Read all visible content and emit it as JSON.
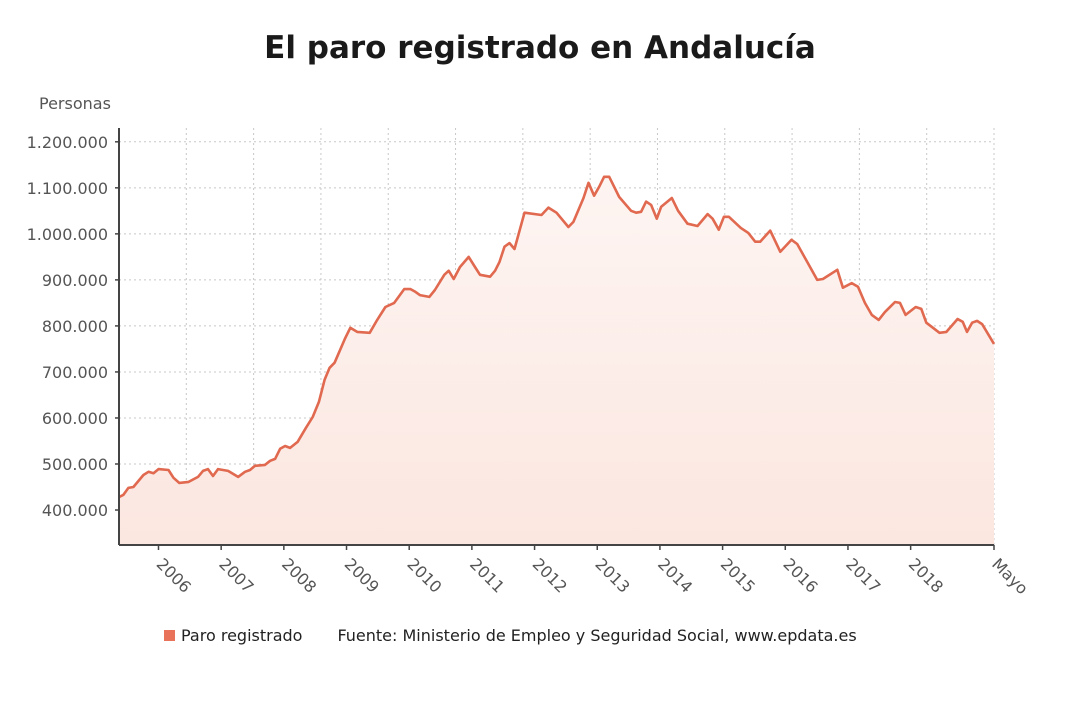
{
  "chart_data": {
    "type": "area",
    "title": "El paro registrado en Andalucía",
    "ylabel": "Personas",
    "xlabel": "",
    "ylim": [
      324000,
      1230000
    ],
    "xlim": [
      2005.37,
      2019.33
    ],
    "grid": true,
    "yticks": [
      {
        "value": 400000,
        "label": "400.000"
      },
      {
        "value": 500000,
        "label": "500.000"
      },
      {
        "value": 600000,
        "label": "600.000"
      },
      {
        "value": 700000,
        "label": "700.000"
      },
      {
        "value": 800000,
        "label": "800.000"
      },
      {
        "value": 900000,
        "label": "900.000"
      },
      {
        "value": 1000000,
        "label": "1.000.000"
      },
      {
        "value": 1100000,
        "label": "1.100.000"
      },
      {
        "value": 1200000,
        "label": "1.200.000"
      }
    ],
    "xticks": [
      {
        "value": 2006,
        "label": "2006"
      },
      {
        "value": 2007,
        "label": "2007"
      },
      {
        "value": 2008,
        "label": "2008"
      },
      {
        "value": 2009,
        "label": "2009"
      },
      {
        "value": 2010,
        "label": "2010"
      },
      {
        "value": 2011,
        "label": "2011"
      },
      {
        "value": 2012,
        "label": "2012"
      },
      {
        "value": 2013,
        "label": "2013"
      },
      {
        "value": 2014,
        "label": "2014"
      },
      {
        "value": 2015,
        "label": "2015"
      },
      {
        "value": 2016,
        "label": "2016"
      },
      {
        "value": 2017,
        "label": "2017"
      },
      {
        "value": 2018,
        "label": "2018"
      },
      {
        "value": 2019.33,
        "label": "Mayo"
      }
    ],
    "series": [
      {
        "name": "Paro registrado",
        "color": "#e0694f",
        "x": [
          2005.37,
          2005.44,
          2005.52,
          2005.6,
          2005.76,
          2005.84,
          2005.92,
          2006.0,
          2006.16,
          2006.24,
          2006.33,
          2006.48,
          2006.63,
          2006.71,
          2006.79,
          2006.87,
          2006.95,
          2007.11,
          2007.27,
          2007.38,
          2007.46,
          2007.54,
          2007.7,
          2007.78,
          2007.86,
          2007.94,
          2008.02,
          2008.1,
          2008.22,
          2008.35,
          2008.46,
          2008.56,
          2008.65,
          2008.73,
          2008.81,
          2008.98,
          2009.06,
          2009.17,
          2009.37,
          2009.49,
          2009.62,
          2009.76,
          2009.92,
          2010.02,
          2010.1,
          2010.17,
          2010.32,
          2010.41,
          2010.56,
          2010.63,
          2010.71,
          2010.81,
          2010.95,
          2011.05,
          2011.13,
          2011.29,
          2011.37,
          2011.44,
          2011.52,
          2011.6,
          2011.68,
          2011.84,
          2012.11,
          2012.22,
          2012.35,
          2012.54,
          2012.62,
          2012.78,
          2012.86,
          2012.95,
          2013.03,
          2013.11,
          2013.19,
          2013.35,
          2013.54,
          2013.62,
          2013.7,
          2013.78,
          2013.86,
          2013.95,
          2014.02,
          2014.19,
          2014.29,
          2014.44,
          2014.6,
          2014.76,
          2014.84,
          2014.94,
          2015.02,
          2015.1,
          2015.29,
          2015.41,
          2015.52,
          2015.6,
          2015.76,
          2015.92,
          2016.1,
          2016.19,
          2016.35,
          2016.51,
          2016.6,
          2016.83,
          2016.92,
          2017.06,
          2017.16,
          2017.27,
          2017.38,
          2017.49,
          2017.59,
          2017.75,
          2017.83,
          2017.92,
          2018.08,
          2018.17,
          2018.25,
          2018.46,
          2018.57,
          2018.75,
          2018.83,
          2018.9,
          2018.98,
          2019.06,
          2019.14,
          2019.33
        ],
        "values": [
          428000,
          433000,
          448000,
          450000,
          476000,
          483000,
          480000,
          489000,
          487000,
          470000,
          459000,
          461000,
          472000,
          485000,
          489000,
          474000,
          489000,
          485000,
          472000,
          483000,
          487000,
          496000,
          498000,
          507000,
          511000,
          533000,
          539000,
          535000,
          548000,
          578000,
          602000,
          635000,
          683000,
          709000,
          720000,
          774000,
          796000,
          787000,
          785000,
          813000,
          841000,
          850000,
          880000,
          880000,
          874000,
          867000,
          863000,
          878000,
          911000,
          920000,
          902000,
          928000,
          950000,
          928000,
          911000,
          907000,
          920000,
          939000,
          972000,
          980000,
          967000,
          1046000,
          1041000,
          1057000,
          1046000,
          1015000,
          1026000,
          1078000,
          1111000,
          1083000,
          1102000,
          1124000,
          1124000,
          1080000,
          1050000,
          1046000,
          1048000,
          1070000,
          1063000,
          1033000,
          1059000,
          1078000,
          1050000,
          1022000,
          1017000,
          1043000,
          1033000,
          1009000,
          1037000,
          1037000,
          1013000,
          1002000,
          983000,
          983000,
          1007000,
          961000,
          987000,
          978000,
          939000,
          900000,
          902000,
          922000,
          883000,
          893000,
          885000,
          850000,
          824000,
          813000,
          830000,
          852000,
          850000,
          824000,
          841000,
          837000,
          807000,
          785000,
          787000,
          815000,
          809000,
          787000,
          807000,
          811000,
          804000,
          761000
        ]
      }
    ],
    "legend": {
      "placement": "bottom-left",
      "entries": [
        "Paro registrado"
      ]
    },
    "source": "Fuente: Ministerio de Empleo y Seguridad Social, www.epdata.es"
  }
}
